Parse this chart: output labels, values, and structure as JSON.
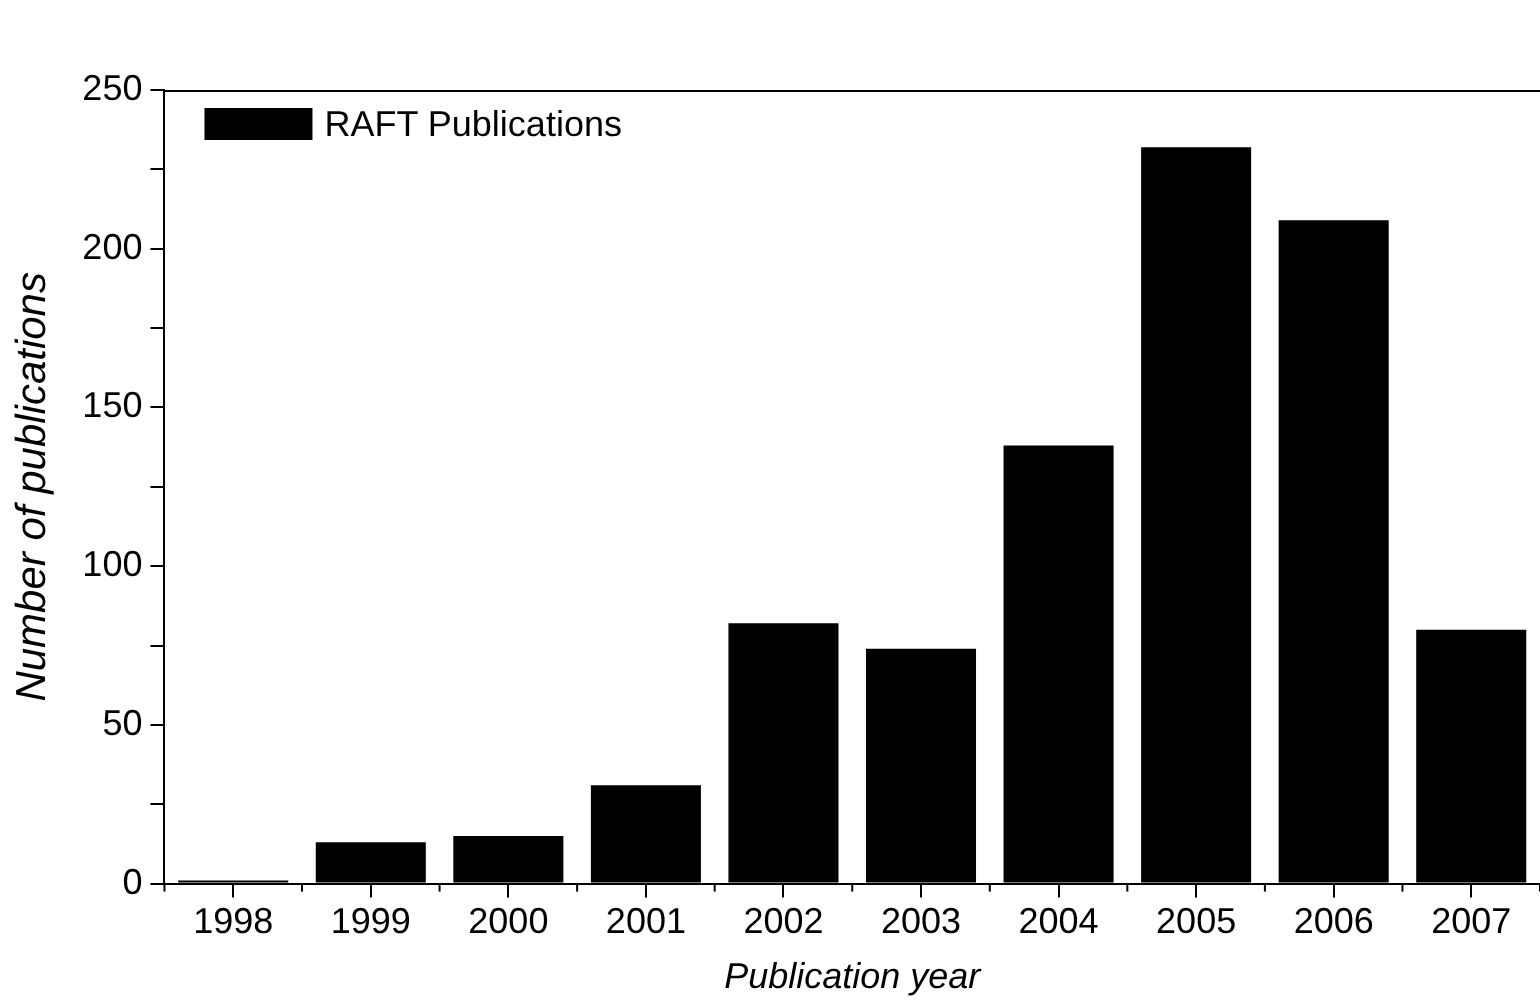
{
  "chart_data": {
    "type": "bar",
    "categories": [
      "1998",
      "1999",
      "2000",
      "2001",
      "2002",
      "2003",
      "2004",
      "2005",
      "2006",
      "2007"
    ],
    "series": [
      {
        "name": "RAFT Publications",
        "color": "#000000",
        "values": [
          1,
          13,
          15,
          31,
          82,
          74,
          138,
          232,
          209,
          80
        ]
      }
    ],
    "xlabel": "Publication year",
    "ylabel": "Number of publications",
    "ylim": [
      0,
      250
    ],
    "yticks": [
      0,
      {
        "value": 25,
        "label": null
      },
      50,
      {
        "value": 75,
        "label": null
      },
      100,
      {
        "value": 125,
        "label": null
      },
      150,
      {
        "value": 175,
        "label": null
      },
      200,
      {
        "value": 225,
        "label": null
      },
      250
    ],
    "grid": false,
    "legend": "top left"
  }
}
